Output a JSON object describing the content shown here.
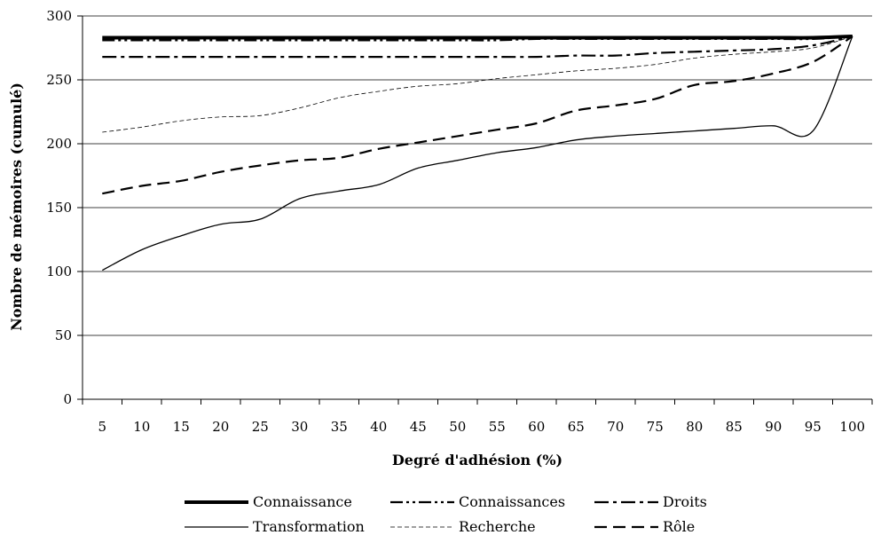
{
  "chart_data": {
    "type": "line",
    "title": "",
    "xlabel": "Degré d'adhésion (%)",
    "ylabel": "Nombre de mémoires (cumulé)",
    "x": [
      5,
      10,
      15,
      20,
      25,
      30,
      35,
      40,
      45,
      50,
      55,
      60,
      65,
      70,
      75,
      80,
      85,
      90,
      95,
      100
    ],
    "x_tick_labels": [
      "5",
      "10",
      "15",
      "20",
      "25",
      "30",
      "35",
      "40",
      "45",
      "50",
      "55",
      "60",
      "65",
      "70",
      "75",
      "80",
      "85",
      "90",
      "95",
      "100"
    ],
    "ylim": [
      0,
      300
    ],
    "y_ticks": [
      0,
      50,
      100,
      150,
      200,
      250,
      300
    ],
    "y_tick_labels": [
      "0",
      "50",
      "100",
      "150",
      "200",
      "250",
      "300"
    ],
    "grid": "horizontal",
    "legend_position": "bottom",
    "series": [
      {
        "name": "Connaissance",
        "style": "solid-thick",
        "values": [
          283,
          283,
          283,
          283,
          283,
          283,
          283,
          283,
          283,
          283,
          283,
          283,
          283,
          283,
          283,
          283,
          283,
          283,
          283,
          284
        ]
      },
      {
        "name": "Connaissances",
        "style": "dash-dot-dot",
        "values": [
          281,
          281,
          281,
          281,
          281,
          281,
          281,
          281,
          281,
          281,
          281,
          282,
          282,
          282,
          282,
          282,
          282,
          282,
          282,
          284
        ]
      },
      {
        "name": "Droits",
        "style": "dash-dot",
        "values": [
          268,
          268,
          268,
          268,
          268,
          268,
          268,
          268,
          268,
          268,
          268,
          268,
          269,
          269,
          271,
          272,
          273,
          274,
          277,
          284
        ]
      },
      {
        "name": "Transformation",
        "style": "solid-thin",
        "values": [
          101,
          117,
          128,
          137,
          141,
          157,
          163,
          168,
          181,
          187,
          193,
          197,
          203,
          206,
          208,
          210,
          212,
          214,
          210,
          284
        ]
      },
      {
        "name": "Recherche",
        "style": "dash-fine",
        "values": [
          209,
          213,
          218,
          221,
          222,
          228,
          236,
          241,
          245,
          247,
          251,
          254,
          257,
          259,
          262,
          267,
          270,
          272,
          275,
          284
        ]
      },
      {
        "name": "Rôle",
        "style": "dash-long",
        "values": [
          161,
          167,
          171,
          178,
          183,
          187,
          189,
          196,
          201,
          206,
          211,
          216,
          226,
          230,
          235,
          246,
          249,
          255,
          264,
          284
        ]
      }
    ]
  }
}
